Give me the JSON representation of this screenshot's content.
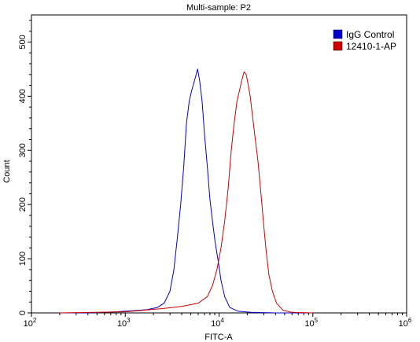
{
  "chart_data": {
    "type": "line",
    "title": "Multi-sample: P2",
    "xlabel": "FITC-A",
    "ylabel": "Count",
    "xscale": "log",
    "xlim": [
      100,
      1000000
    ],
    "ylim": [
      0,
      550
    ],
    "x_ticks": [
      {
        "base": "10",
        "exp": "2",
        "value": 100
      },
      {
        "base": "10",
        "exp": "3",
        "value": 1000
      },
      {
        "base": "10",
        "exp": "4",
        "value": 10000
      },
      {
        "base": "10",
        "exp": "5",
        "value": 100000
      },
      {
        "base": "10",
        "exp": "6",
        "value": 1000000
      }
    ],
    "y_ticks": [
      "0",
      "100",
      "200",
      "300",
      "400",
      "500"
    ],
    "legend_position": "top-right",
    "grid": false,
    "series": [
      {
        "name": "IgG Control",
        "color": "#0000cc",
        "x": [
          200,
          400,
          800,
          1200,
          1700,
          2200,
          2600,
          3000,
          3300,
          3600,
          3900,
          4200,
          4500,
          4800,
          5100,
          5400,
          5700,
          5900,
          6200,
          6600,
          7000,
          7500,
          8000,
          8500,
          9100,
          9800,
          10500,
          11500,
          13000,
          16000,
          22000,
          40000,
          100000
        ],
        "y": [
          0,
          0,
          2,
          4,
          6,
          10,
          18,
          40,
          80,
          140,
          200,
          270,
          350,
          390,
          410,
          425,
          440,
          450,
          430,
          390,
          330,
          270,
          210,
          170,
          130,
          95,
          60,
          30,
          10,
          3,
          1,
          0,
          0
        ]
      },
      {
        "name": "12410-1-AP",
        "color": "#cc0000",
        "x": [
          200,
          1000,
          2500,
          4000,
          6000,
          7500,
          8500,
          9500,
          10500,
          11500,
          12500,
          13500,
          14500,
          15500,
          16500,
          17500,
          18500,
          19500,
          20500,
          21500,
          22500,
          24000,
          26000,
          28000,
          30000,
          32000,
          34000,
          37000,
          41000,
          48000,
          60000,
          100000
        ],
        "y": [
          0,
          2,
          8,
          12,
          18,
          30,
          50,
          80,
          120,
          170,
          230,
          300,
          350,
          390,
          410,
          430,
          445,
          440,
          420,
          400,
          370,
          330,
          280,
          220,
          160,
          110,
          70,
          40,
          18,
          5,
          1,
          0
        ]
      }
    ]
  }
}
